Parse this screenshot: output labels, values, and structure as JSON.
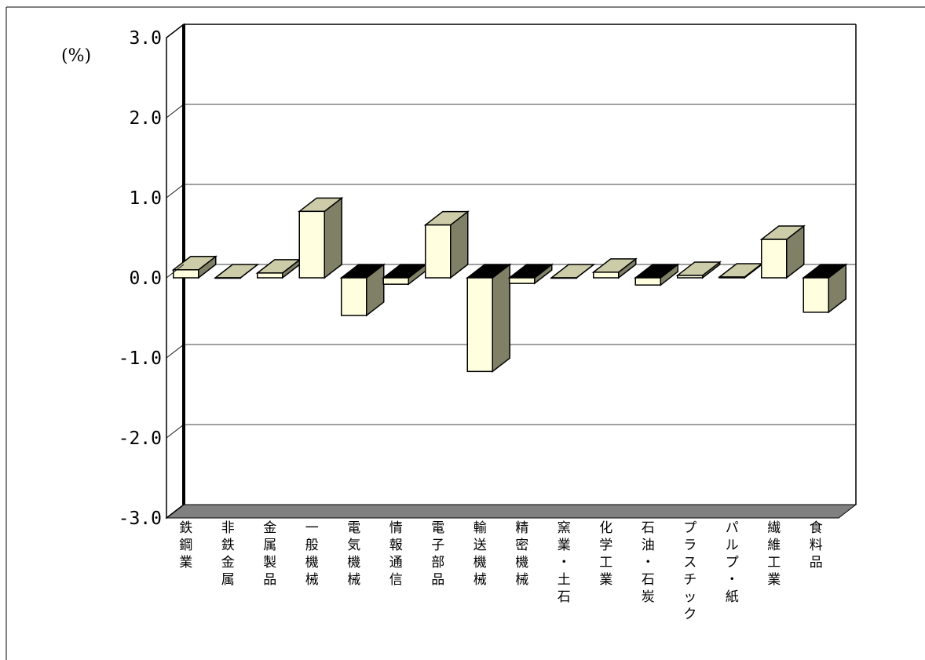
{
  "chart_data": {
    "type": "bar",
    "title": "",
    "xlabel": "",
    "ylabel": "(%)",
    "ylim": [
      -3.0,
      3.0
    ],
    "yticks": [
      "3.0",
      "2.0",
      "1.0",
      "0.0",
      "-1.0",
      "-2.0",
      "-3.0"
    ],
    "grid": true,
    "legend": "none",
    "categories": [
      "鉄鋼業",
      "非鉄金属",
      "金属製品",
      "一般機械",
      "電気機械",
      "情報通信",
      "電子部品",
      "輸送機械",
      "精密機械",
      "窯業・土石",
      "化学工業",
      "石油・石炭",
      "プラスチック",
      "パルプ・紙",
      "繊維工業",
      "食料品"
    ],
    "values": [
      0.1,
      0.0,
      0.06,
      0.83,
      -0.47,
      -0.08,
      0.66,
      -1.17,
      -0.07,
      0.0,
      0.07,
      -0.09,
      0.03,
      0.01,
      0.48,
      -0.43
    ],
    "colors": {
      "bar_front": "#ffffe0",
      "bar_side": "#808066",
      "bar_top": "#cccca8",
      "neg_cap": "#000000",
      "floor": "#808080"
    }
  }
}
